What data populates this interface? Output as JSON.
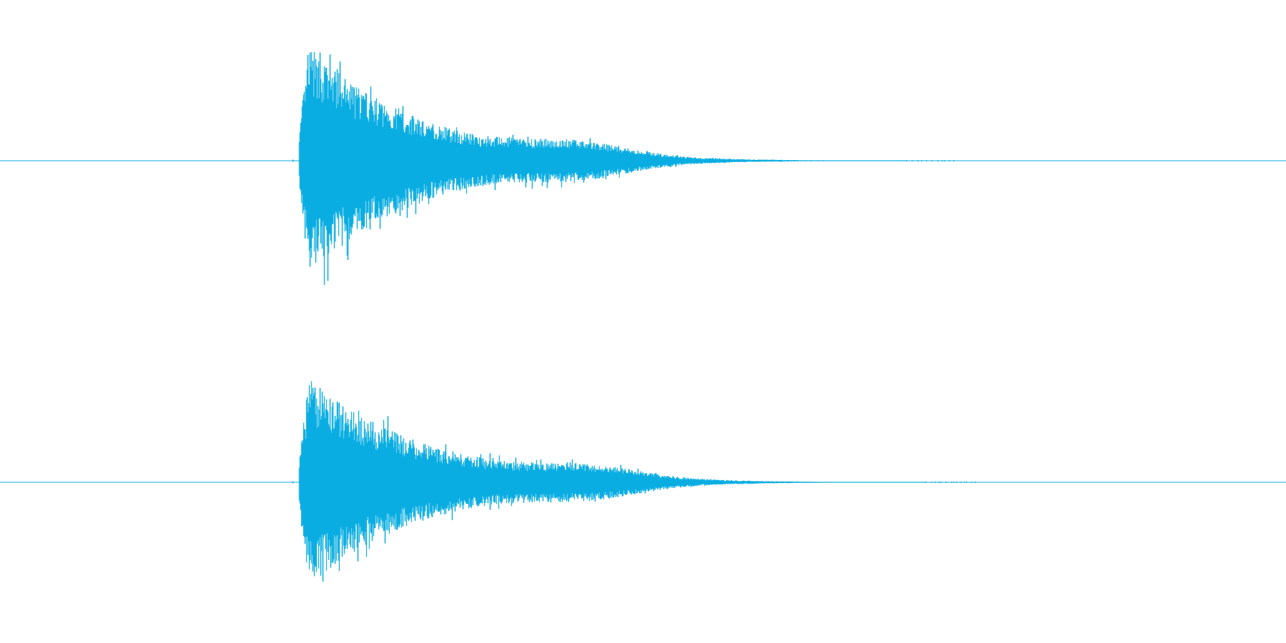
{
  "waveform": {
    "color": "#0aade2",
    "background": "#ffffff",
    "channels": [
      {
        "channel": "left",
        "start_fraction": 0.232,
        "peak_fraction": 0.241,
        "end_fraction": 0.705,
        "peak_level": 0.93
      },
      {
        "channel": "right",
        "start_fraction": 0.232,
        "peak_fraction": 0.241,
        "end_fraction": 0.72,
        "peak_level": 0.85
      }
    ]
  }
}
